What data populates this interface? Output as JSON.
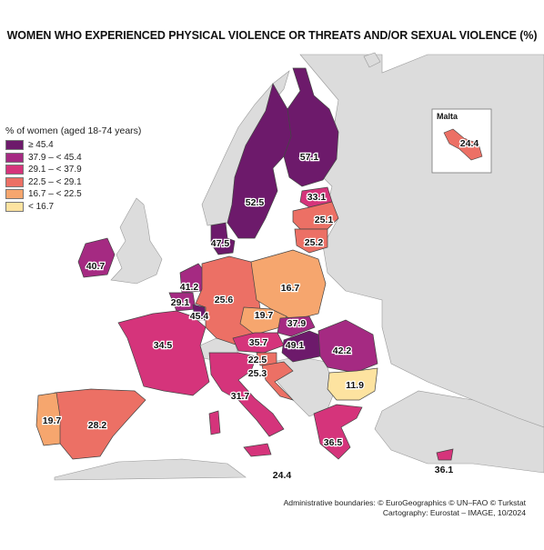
{
  "title": "WOMEN WHO EXPERIENCED PHYSICAL VIOLENCE OR THREATS AND/OR SEXUAL VIOLENCE (%)",
  "legend": {
    "title": "% of women (aged 18-74 years)",
    "classes": [
      {
        "label": "≥ 45.4",
        "color": "#6d1a6b"
      },
      {
        "label": "37.9 – < 45.4",
        "color": "#a52a82"
      },
      {
        "label": "29.1 – < 37.9",
        "color": "#d5347b"
      },
      {
        "label": "22.5 – < 29.1",
        "color": "#ec7065"
      },
      {
        "label": "16.7 – < 22.5",
        "color": "#f6a66e"
      },
      {
        "label": "< 16.7",
        "color": "#fde3a0"
      }
    ]
  },
  "colors": {
    "nodata": "#dcdcdc",
    "sea": "#ffffff",
    "border": "#555555"
  },
  "inset": {
    "title": "Malta",
    "value": "24.4"
  },
  "countries": {
    "finland": "57.1",
    "sweden": "52.5",
    "estonia": "33.1",
    "latvia": "25.1",
    "lithuania": "25.2",
    "denmark": "47.5",
    "ireland": "40.7",
    "netherlands": "41.2",
    "belgium": "29.1",
    "luxembourg": "45.4",
    "germany": "25.6",
    "poland": "16.7",
    "czechia": "19.7",
    "slovakia": "37.9",
    "austria": "35.7",
    "hungary": "49.1",
    "romania": "42.2",
    "slovenia": "22.5",
    "croatia": "25.3",
    "france": "34.5",
    "italy": "31.7",
    "bulgaria": "11.9",
    "greece": "36.5",
    "spain": "28.2",
    "portugal": "19.7",
    "cyprus": "36.1",
    "malta_main": "24.4"
  },
  "credits": [
    "Administrative boundaries: © EuroGeographics © UN–FAO © Turkstat",
    "Cartography: Eurostat – IMAGE, 10/2024"
  ]
}
